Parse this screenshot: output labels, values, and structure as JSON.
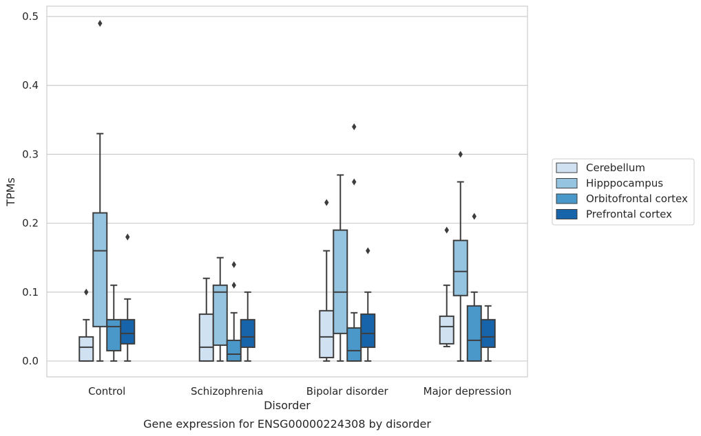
{
  "chart_data": {
    "type": "box",
    "title": "",
    "caption": "Gene expression for ENSG00000224308 by disorder",
    "xlabel": "Disorder",
    "ylabel": "TPMs",
    "ylim": [
      -0.023,
      0.515
    ],
    "yticks": [
      0.0,
      0.1,
      0.2,
      0.3,
      0.4,
      0.5
    ],
    "ytick_labels": [
      "0.0",
      "0.1",
      "0.2",
      "0.3",
      "0.4",
      "0.5"
    ],
    "grid": "horizontal",
    "categories": [
      "Control",
      "Schizophrenia",
      "Bipolar disorder",
      "Major depression"
    ],
    "legend": {
      "placement": "right"
    },
    "series": [
      {
        "name": "Cerebellum",
        "color": "#d0e1f2",
        "boxes": [
          {
            "whislo": 0.0,
            "q1": 0.0,
            "med": 0.02,
            "q3": 0.035,
            "whishi": 0.06,
            "fliers": [
              0.1
            ]
          },
          {
            "whislo": 0.0,
            "q1": 0.0,
            "med": 0.02,
            "q3": 0.068,
            "whishi": 0.12,
            "fliers": []
          },
          {
            "whislo": 0.0,
            "q1": 0.005,
            "med": 0.035,
            "q3": 0.073,
            "whishi": 0.16,
            "fliers": [
              0.23
            ]
          },
          {
            "whislo": 0.021,
            "q1": 0.025,
            "med": 0.05,
            "q3": 0.065,
            "whishi": 0.11,
            "fliers": [
              0.19
            ]
          }
        ]
      },
      {
        "name": "Hipppocampus",
        "color": "#94c4df",
        "boxes": [
          {
            "whislo": 0.0,
            "q1": 0.05,
            "med": 0.16,
            "q3": 0.215,
            "whishi": 0.33,
            "fliers": [
              0.49
            ]
          },
          {
            "whislo": 0.0,
            "q1": 0.023,
            "med": 0.1,
            "q3": 0.11,
            "whishi": 0.15,
            "fliers": []
          },
          {
            "whislo": 0.0,
            "q1": 0.04,
            "med": 0.1,
            "q3": 0.19,
            "whishi": 0.27,
            "fliers": []
          },
          {
            "whislo": 0.0,
            "q1": 0.095,
            "med": 0.13,
            "q3": 0.175,
            "whishi": 0.26,
            "fliers": [
              0.3
            ]
          }
        ]
      },
      {
        "name": "Orbitofrontal cortex",
        "color": "#4a98c9",
        "boxes": [
          {
            "whislo": 0.0,
            "q1": 0.015,
            "med": 0.05,
            "q3": 0.06,
            "whishi": 0.11,
            "fliers": []
          },
          {
            "whislo": 0.0,
            "q1": 0.0,
            "med": 0.01,
            "q3": 0.03,
            "whishi": 0.07,
            "fliers": [
              0.11,
              0.14
            ]
          },
          {
            "whislo": 0.0,
            "q1": 0.0,
            "med": 0.015,
            "q3": 0.048,
            "whishi": 0.07,
            "fliers": [
              0.26,
              0.34
            ]
          },
          {
            "whislo": 0.0,
            "q1": 0.0,
            "med": 0.03,
            "q3": 0.08,
            "whishi": 0.1,
            "fliers": [
              0.21
            ]
          }
        ]
      },
      {
        "name": "Prefrontal cortex",
        "color": "#1764ab",
        "boxes": [
          {
            "whislo": 0.0,
            "q1": 0.025,
            "med": 0.04,
            "q3": 0.06,
            "whishi": 0.09,
            "fliers": [
              0.18
            ]
          },
          {
            "whislo": 0.0,
            "q1": 0.02,
            "med": 0.035,
            "q3": 0.06,
            "whishi": 0.1,
            "fliers": []
          },
          {
            "whislo": 0.0,
            "q1": 0.02,
            "med": 0.04,
            "q3": 0.068,
            "whishi": 0.1,
            "fliers": [
              0.16
            ]
          },
          {
            "whislo": 0.0,
            "q1": 0.02,
            "med": 0.035,
            "q3": 0.06,
            "whishi": 0.08,
            "fliers": []
          }
        ]
      }
    ]
  }
}
